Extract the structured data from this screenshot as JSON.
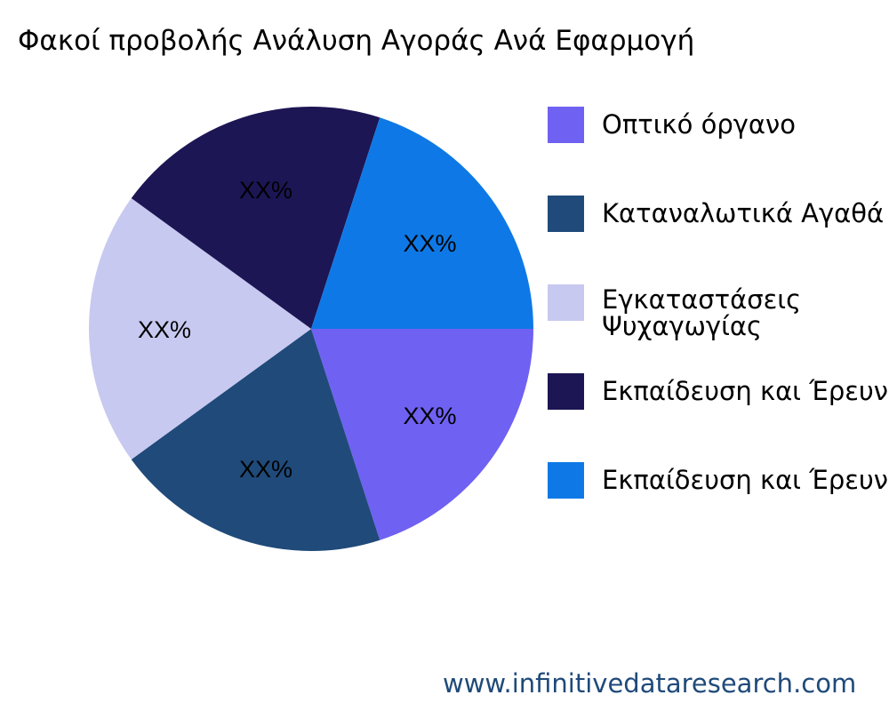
{
  "title": "Φακοί προβολής Ανάλυση Αγοράς Ανά Εφαρμογή",
  "footer": "www.infinitivedataresearch.com",
  "chart_data": {
    "type": "pie",
    "title": "Φακοί προβολής Ανάλυση Αγοράς Ανά Εφαρμογή",
    "categories": [
      "Οπτικό όργανο",
      "Καταναλωτικά Αγαθά",
      "Εγκαταστάσεις Ψυχαγωγίας",
      "Εκπαίδευση και Έρευνα",
      "Εκπαίδευση και Έρευνα"
    ],
    "values": [
      20,
      20,
      20,
      20,
      20
    ],
    "data_labels": [
      "XX%",
      "XX%",
      "XX%",
      "XX%",
      "XX%"
    ],
    "colors": [
      "#6f61f2",
      "#1f4a7a",
      "#c8c9f0",
      "#1c1654",
      "#0e79e6"
    ],
    "legend_position": "right"
  },
  "legend": [
    {
      "lines": [
        "Οπτικό όργανο"
      ]
    },
    {
      "lines": [
        "Καταναλωτικά Αγαθά"
      ]
    },
    {
      "lines": [
        "Εγκαταστάσεις",
        "Ψυχαγωγίας"
      ]
    },
    {
      "lines": [
        "Εκπαίδευση και Έρευνα"
      ]
    },
    {
      "lines": [
        "Εκπαίδευση και Έρευνα"
      ]
    }
  ]
}
